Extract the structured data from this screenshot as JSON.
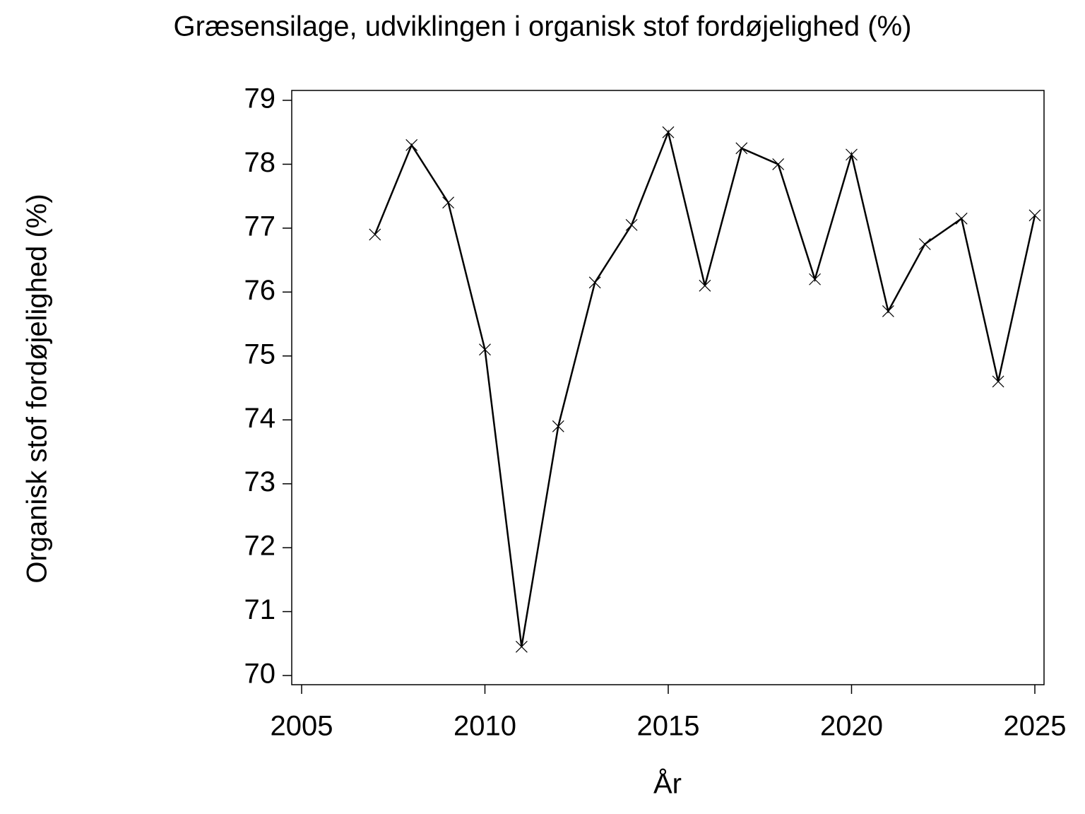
{
  "chart_data": {
    "type": "line",
    "title": "Græsensilage, udviklingen i organisk stof fordøjelighed (%)",
    "x_label": "År",
    "y_label": "Organisk stof fordøjelighed (%)",
    "x": [
      2007,
      2008,
      2009,
      2010,
      2011,
      2012,
      2013,
      2014,
      2015,
      2016,
      2017,
      2018,
      2019,
      2020,
      2021,
      2022,
      2023,
      2024,
      2025
    ],
    "series": [
      {
        "color": "#000000",
        "values": [
          76.9,
          78.3,
          77.4,
          75.1,
          70.45,
          73.9,
          76.15,
          77.05,
          78.5,
          76.1,
          78.25,
          78.0,
          76.2,
          78.15,
          75.7,
          76.75,
          77.15,
          74.6,
          77.2
        ]
      }
    ],
    "xlim": [
      2005,
      2025
    ],
    "xticks": [
      2005,
      2010,
      2015,
      2020,
      2025
    ],
    "ylim": [
      70,
      79
    ],
    "yticks": [
      70,
      71,
      72,
      73,
      74,
      75,
      76,
      77,
      78,
      79
    ],
    "marker": "x"
  }
}
